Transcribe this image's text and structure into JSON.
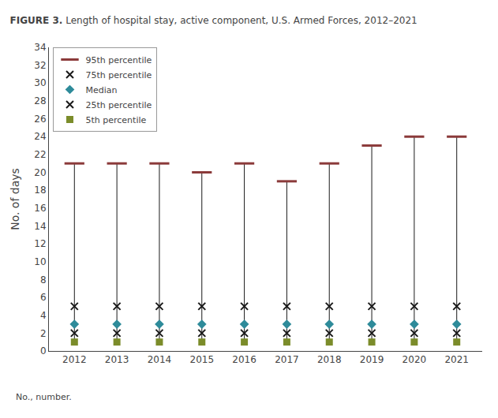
{
  "chart_data": {
    "type": "range_markers",
    "title": "FIGURE 3.",
    "subtitle": "Length of hospital stay, active component, U.S. Armed Forces, 2012–2021",
    "annotations": [
      "No., number."
    ],
    "y_label": "No. of days",
    "x": [
      2012,
      2013,
      2014,
      2015,
      2016,
      2017,
      2018,
      2019,
      2020,
      2021
    ],
    "color": "#1a1a1a",
    "series": [
      {
        "name": "95th percentile",
        "color": "#8B3A3A",
        "marker": "line-ew",
        "values": [
          21,
          21,
          21,
          20,
          21,
          19,
          21,
          23,
          24,
          24
        ]
      },
      {
        "name": "75th percentile",
        "color": "#1a1a1a",
        "marker": "x-thin",
        "values": [
          5,
          5,
          5,
          5,
          5,
          5,
          5,
          5,
          5,
          5
        ]
      },
      {
        "name": "Median",
        "color": "#2E8B9A",
        "marker": "diamond",
        "values": [
          3,
          3,
          3,
          3,
          3,
          3,
          3,
          3,
          3,
          3
        ]
      },
      {
        "name": "25th percentile",
        "color": "#1a1a1a",
        "marker": "x-thin",
        "values": [
          2,
          2,
          2,
          2,
          2,
          2,
          2,
          2,
          2,
          2
        ]
      },
      {
        "name": "5th percentile",
        "color": "#7B8C2A",
        "marker": "square",
        "values": [
          1,
          1,
          1,
          1,
          1,
          1,
          1,
          1,
          1,
          1
        ]
      }
    ],
    "xlim": [
      2011.4,
      2021.6
    ],
    "xticks": [
      2012,
      2013,
      2014,
      2015,
      2016,
      2017,
      2018,
      2019,
      2020,
      2021
    ],
    "ylim": [
      0,
      34
    ],
    "yticks": [
      0,
      2,
      4,
      6,
      8,
      10,
      12,
      14,
      16,
      18,
      20,
      22,
      24,
      26,
      28,
      30,
      32,
      34
    ],
    "grid": false,
    "legend": "upper left"
  }
}
